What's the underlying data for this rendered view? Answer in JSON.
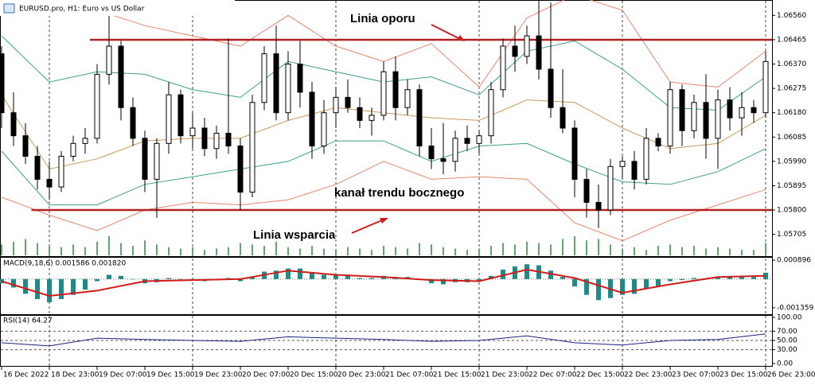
{
  "chart_data": {
    "type": "candlestick",
    "title": "EURUSD.pro, H1:  Euro vs US Dollar",
    "xlim": [
      0,
      64
    ],
    "xticks": [
      {
        "value": 0,
        "label": "16 Dec 2022"
      },
      {
        "value": 4,
        "label": "18 Dec 23:00"
      },
      {
        "value": 8,
        "label": "19 Dec 07:00"
      },
      {
        "value": 12,
        "label": "19 Dec 15:00"
      },
      {
        "value": 16,
        "label": "19 Dec 23:00"
      },
      {
        "value": 20,
        "label": "20 Dec 07:00"
      },
      {
        "value": 24,
        "label": "20 Dec 15:00"
      },
      {
        "value": 28,
        "label": "20 Dec 23:00"
      },
      {
        "value": 32,
        "label": "21 Dec 07:00"
      },
      {
        "value": 36,
        "label": "21 Dec 15:00"
      },
      {
        "value": 40,
        "label": "21 Dec 23:00"
      },
      {
        "value": 44,
        "label": "22 Dec 07:00"
      },
      {
        "value": 48,
        "label": "22 Dec 15:00"
      },
      {
        "value": 52,
        "label": "22 Dec 23:00"
      },
      {
        "value": 56,
        "label": "23 Dec 07:00"
      },
      {
        "value": 60,
        "label": "23 Dec 15:00"
      },
      {
        "value": 64,
        "label": "26 Dec 23:00"
      }
    ],
    "ylim": [
      1.0562,
      1.06617
    ],
    "yticks": [
      {
        "value": 1.0656,
        "label": "1.06560"
      },
      {
        "value": 1.06465,
        "label": "1.06465"
      },
      {
        "value": 1.0637,
        "label": "1.06370"
      },
      {
        "value": 1.06275,
        "label": "1.06275"
      },
      {
        "value": 1.0618,
        "label": "1.06180"
      },
      {
        "value": 1.06085,
        "label": "1.06085"
      },
      {
        "value": 1.0599,
        "label": "1.05990"
      },
      {
        "value": 1.05895,
        "label": "1.05895"
      },
      {
        "value": 1.058,
        "label": "1.05800"
      },
      {
        "value": 1.05705,
        "label": "1.05705"
      }
    ],
    "bull_color": "#ffffff",
    "bear_color": "#000000",
    "open": [
      1.0641,
      1.0618,
      1.0609,
      1.0601,
      1.0592,
      1.0589,
      1.0601,
      1.0606,
      1.0608,
      1.0633,
      1.0644,
      1.062,
      1.0608,
      1.0592,
      1.0606,
      1.0625,
      1.0609,
      1.0612,
      1.0604,
      1.061,
      1.0605,
      1.0587,
      1.0622,
      1.0641,
      1.0618,
      1.0637,
      1.0626,
      1.0605,
      1.0618,
      1.0624,
      1.062,
      1.0615,
      1.0617,
      1.0634,
      1.062,
      1.0627,
      1.0605,
      1.06,
      1.0599,
      1.0608,
      1.0606,
      1.0609,
      1.0627,
      1.0644,
      1.064,
      1.0648,
      1.0635,
      1.062,
      1.0612,
      1.0592,
      1.0583,
      1.058,
      1.0597,
      1.0599,
      1.0592,
      1.0608,
      1.0605,
      1.0627,
      1.0611,
      1.0622,
      1.0608,
      1.0623,
      1.0616,
      1.062,
      1.0618
    ],
    "high": [
      1.0644,
      1.0626,
      1.0614,
      1.0605,
      1.0599,
      1.0603,
      1.0609,
      1.0612,
      1.0637,
      1.0662,
      1.0646,
      1.0624,
      1.0611,
      1.0608,
      1.063,
      1.0627,
      1.0618,
      1.0616,
      1.0613,
      1.0647,
      1.0608,
      1.0625,
      1.0644,
      1.0652,
      1.0642,
      1.0646,
      1.063,
      1.0623,
      1.0628,
      1.0631,
      1.0624,
      1.062,
      1.0638,
      1.064,
      1.0631,
      1.0629,
      1.0612,
      1.0614,
      1.0611,
      1.0613,
      1.0611,
      1.063,
      1.0647,
      1.0652,
      1.0652,
      1.0666,
      1.0661,
      1.0635,
      1.0615,
      1.0596,
      1.059,
      1.06,
      1.0601,
      1.0603,
      1.0612,
      1.061,
      1.063,
      1.0629,
      1.0625,
      1.0633,
      1.0627,
      1.0628,
      1.0626,
      1.0623,
      1.0642
    ],
    "low": [
      1.0612,
      1.0605,
      1.0598,
      1.0588,
      1.0584,
      1.0587,
      1.0599,
      1.0602,
      1.0606,
      1.0629,
      1.0615,
      1.0605,
      1.0587,
      1.0577,
      1.0602,
      1.0606,
      1.0604,
      1.0601,
      1.06,
      1.0602,
      1.058,
      1.0585,
      1.0619,
      1.0615,
      1.0615,
      1.062,
      1.06,
      1.0602,
      1.0612,
      1.0618,
      1.0612,
      1.0609,
      1.0615,
      1.0615,
      1.0617,
      1.0601,
      1.0596,
      1.0594,
      1.0595,
      1.0603,
      1.0602,
      1.0606,
      1.0624,
      1.0634,
      1.0637,
      1.0631,
      1.0616,
      1.061,
      1.0585,
      1.0577,
      1.0573,
      1.0578,
      1.0592,
      1.0588,
      1.059,
      1.0603,
      1.0602,
      1.0605,
      1.0608,
      1.06,
      1.0596,
      1.0611,
      1.0609,
      1.0614,
      1.0616
    ],
    "close": [
      1.0618,
      1.0609,
      1.0601,
      1.0592,
      1.0589,
      1.0601,
      1.0606,
      1.0608,
      1.0633,
      1.0644,
      1.062,
      1.0608,
      1.0592,
      1.0606,
      1.0625,
      1.0609,
      1.0612,
      1.0604,
      1.061,
      1.0605,
      1.0587,
      1.0622,
      1.0641,
      1.0618,
      1.0637,
      1.0626,
      1.0605,
      1.0618,
      1.0624,
      1.062,
      1.0615,
      1.0617,
      1.0634,
      1.062,
      1.0627,
      1.0605,
      1.06,
      1.0599,
      1.0608,
      1.0606,
      1.0609,
      1.0627,
      1.0644,
      1.064,
      1.0648,
      1.0635,
      1.062,
      1.0612,
      1.0592,
      1.0583,
      1.058,
      1.0597,
      1.0599,
      1.0592,
      1.0608,
      1.0605,
      1.0627,
      1.0611,
      1.0622,
      1.0608,
      1.0623,
      1.0616,
      1.062,
      1.0618,
      1.0638
    ],
    "volume_color": "#2e8b3a",
    "volume": [
      8,
      10,
      12,
      9,
      7,
      6,
      8,
      6,
      10,
      14,
      9,
      7,
      11,
      8,
      6,
      5,
      6,
      4,
      5,
      6,
      9,
      8,
      7,
      10,
      6,
      5,
      7,
      5,
      4,
      6,
      5,
      4,
      7,
      6,
      5,
      9,
      8,
      6,
      5,
      4,
      5,
      7,
      9,
      8,
      10,
      9,
      8,
      12,
      14,
      11,
      12,
      8,
      5,
      6,
      4,
      7,
      8,
      6,
      7,
      5,
      6,
      5,
      4,
      4,
      9
    ],
    "overlay_x": [
      0,
      4,
      8,
      12,
      16,
      20,
      24,
      28,
      32,
      36,
      40,
      44,
      48,
      52,
      56,
      60,
      64
    ],
    "overlays": [
      {
        "color": "#e8856f",
        "values": [
          1.0662,
          1.0656,
          1.0658,
          1.0652,
          1.0648,
          1.0644,
          1.0656,
          1.0644,
          1.0638,
          1.0645,
          1.0628,
          1.0655,
          1.0664,
          1.0658,
          1.063,
          1.0628,
          1.0642
        ]
      },
      {
        "color": "#3f9f86",
        "values": [
          1.0648,
          1.063,
          1.0634,
          1.0633,
          1.0627,
          1.0624,
          1.0638,
          1.0634,
          1.063,
          1.0632,
          1.0625,
          1.0642,
          1.0646,
          1.0635,
          1.062,
          1.0619,
          1.0632
        ]
      },
      {
        "color": "#c89a5a",
        "values": [
          1.0625,
          1.0596,
          1.06,
          1.0607,
          1.0608,
          1.0608,
          1.0615,
          1.062,
          1.0618,
          1.0616,
          1.0615,
          1.0623,
          1.0622,
          1.0612,
          1.0604,
          1.0606,
          1.0617
        ]
      },
      {
        "color": "#3f9f86",
        "values": [
          1.0603,
          1.0582,
          1.0582,
          1.059,
          1.0593,
          1.0596,
          1.0599,
          1.0607,
          1.0607,
          1.0599,
          1.0605,
          1.0606,
          1.0598,
          1.0591,
          1.059,
          1.0595,
          1.0604
        ]
      },
      {
        "color": "#e8856f",
        "values": [
          1.0585,
          1.0578,
          1.0572,
          1.058,
          1.0583,
          1.0582,
          1.0584,
          1.059,
          1.0599,
          1.0592,
          1.0593,
          1.0592,
          1.0575,
          1.0568,
          1.0576,
          1.0582,
          1.0588
        ]
      }
    ],
    "hlines": [
      {
        "value": 1.06465,
        "x_start": 7.4,
        "color": "#b22222"
      },
      {
        "value": 1.058,
        "x_start": 2.5,
        "color": "#b22222"
      }
    ],
    "annotations": [
      "Linia oporu",
      "kanał trendu bocznego",
      "Linia wsparcia"
    ],
    "annotation_color": "#1c1cb0",
    "macd": {
      "label": "MACD(9,18,6) 0.001586 0.001820",
      "ylim": [
        -0.001703,
        0.001011
      ],
      "yticks": [
        0.000896,
        -0.001359
      ],
      "hist_color": "#1f8a86",
      "hist": [
        -0.0002,
        -0.0004,
        -0.0007,
        -0.00095,
        -0.0011,
        -0.00095,
        -0.00075,
        -0.0005,
        -0.0001,
        0.0002,
        0.00015,
        0,
        -0.0002,
        -0.00015,
        5e-05,
        0,
        -5e-05,
        -0.0001,
        -5e-05,
        5e-05,
        -0.0001,
        0.0001,
        0.00035,
        0.0004,
        0.0005,
        0.0005,
        0.0003,
        0.0002,
        0.0002,
        0.00015,
        5e-05,
        5e-05,
        0.00015,
        0.0001,
        0.0001,
        -5e-05,
        -0.0002,
        -0.00025,
        -0.00015,
        -0.00015,
        -0.0001,
        0.00015,
        0.00045,
        0.0006,
        0.0007,
        0.00065,
        0.0004,
        0.0001,
        -0.00035,
        -0.00075,
        -0.001,
        -0.0009,
        -0.00075,
        -0.0007,
        -0.00045,
        -0.00035,
        -0.0001,
        -5e-05,
        5e-05,
        0,
        0.0001,
        0.0001,
        0.00015,
        0.0001,
        0.0003
      ],
      "signal_color": "#d11c1c",
      "signal": [
        -0.0001,
        -0.0008,
        -0.00055,
        -0.0001,
        -5e-05,
        0,
        0.0004,
        0.0002,
        0.0001,
        -5e-05,
        -0.0001,
        0.00045,
        5e-05,
        -0.00065,
        -0.00025,
        0.0001,
        0.00015
      ]
    },
    "rsi": {
      "label": "RSI(14) 64.27",
      "ylim": [
        -7,
        103.5
      ],
      "yticks": [
        {
          "value": 100,
          "label": "100.00"
        },
        {
          "value": 70,
          "label": "70.00"
        },
        {
          "value": 50,
          "label": "50.00"
        },
        {
          "value": 30,
          "label": "30.00"
        },
        {
          "value": 0,
          "label": "0.00"
        }
      ],
      "color": "#1a237e",
      "values": [
        45,
        38,
        55,
        52,
        50,
        48,
        58,
        55,
        52,
        48,
        50,
        60,
        45,
        40,
        50,
        52,
        64.27
      ]
    }
  }
}
